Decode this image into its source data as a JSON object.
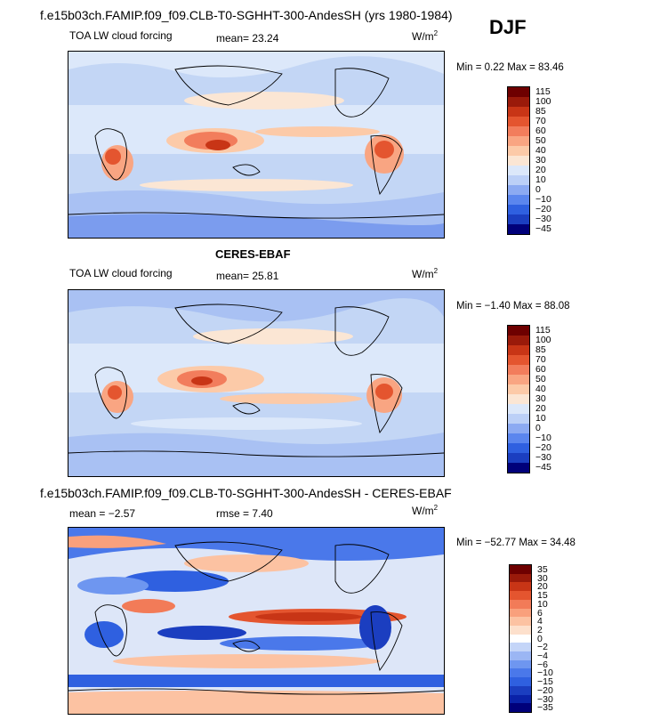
{
  "header": {
    "title": "f.e15b03ch.FAMIP.f09_f09.CLB-T0-SGHHT-300-AndesSH (yrs 1980-1984)",
    "season": "DJF"
  },
  "panels": [
    {
      "id": "model",
      "title": "",
      "left_label": "TOA LW cloud forcing",
      "stat1": "mean=  23.24",
      "stat2": "",
      "units": "W/m",
      "units_sup": "2",
      "minmax": "Min =   0.22 Max =  83.46",
      "colors": [
        "#00007a",
        "#1b3ec0",
        "#2f60e0",
        "#5b86ee",
        "#8caaf2",
        "#bcd0f7",
        "#dce8fa",
        "#fbe6d4",
        "#fccaa8",
        "#f9a582",
        "#f27d5c",
        "#e4552f",
        "#c83516",
        "#9a1a0a",
        "#6e0000"
      ],
      "levels": [
        "115",
        "100",
        "85",
        "70",
        "60",
        "50",
        "40",
        "30",
        "20",
        "10",
        "0",
        "−10",
        "−20",
        "−30",
        "−45"
      ]
    },
    {
      "id": "obs",
      "title": "CERES-EBAF",
      "left_label": "TOA LW cloud forcing",
      "stat1": "mean=  25.81",
      "stat2": "",
      "units": "W/m",
      "units_sup": "2",
      "minmax": "Min =  −1.40 Max =  88.08",
      "colors": [
        "#00007a",
        "#1b3ec0",
        "#2f60e0",
        "#5b86ee",
        "#8caaf2",
        "#bcd0f7",
        "#dce8fa",
        "#fbe6d4",
        "#fccaa8",
        "#f9a582",
        "#f27d5c",
        "#e4552f",
        "#c83516",
        "#9a1a0a",
        "#6e0000"
      ],
      "levels": [
        "115",
        "100",
        "85",
        "70",
        "60",
        "50",
        "40",
        "30",
        "20",
        "10",
        "0",
        "−10",
        "−20",
        "−30",
        "−45"
      ]
    },
    {
      "id": "diff",
      "title": "f.e15b03ch.FAMIP.f09_f09.CLB-T0-SGHHT-300-AndesSH - CERES-EBAF",
      "left_label": "mean =   −2.57",
      "stat1": "rmse =    7.40",
      "stat2": "",
      "units": "W/m",
      "units_sup": "2",
      "minmax": "Min = −52.77 Max =  34.48",
      "colors": [
        "#00007a",
        "#0a22a8",
        "#1b3ec0",
        "#2f60e0",
        "#4a78ea",
        "#6e96f0",
        "#9bb6f4",
        "#c4d5f8",
        "#ffffff",
        "#fde0cc",
        "#fcc2a2",
        "#f9a07c",
        "#f27b58",
        "#e4552f",
        "#c83516",
        "#9a1a0a",
        "#6e0000"
      ],
      "levels": [
        "35",
        "30",
        "20",
        "15",
        "10",
        "6",
        "4",
        "2",
        "0",
        "−2",
        "−4",
        "−6",
        "−10",
        "−15",
        "−20",
        "−30",
        "−35"
      ]
    }
  ],
  "chart_data": [
    {
      "type": "heatmap",
      "title": "TOA LW cloud forcing",
      "subtitle": "f.e15b03ch.FAMIP.f09_f09.CLB-T0-SGHHT-300-AndesSH (yrs 1980-1984), DJF",
      "units": "W/m2",
      "mean": 23.24,
      "min": 0.22,
      "max": 83.46,
      "contour_levels": [
        -45,
        -30,
        -20,
        -10,
        0,
        10,
        20,
        30,
        40,
        50,
        60,
        70,
        85,
        100,
        115
      ]
    },
    {
      "type": "heatmap",
      "title": "CERES-EBAF",
      "subtitle": "TOA LW cloud forcing",
      "units": "W/m2",
      "mean": 25.81,
      "min": -1.4,
      "max": 88.08,
      "contour_levels": [
        -45,
        -30,
        -20,
        -10,
        0,
        10,
        20,
        30,
        40,
        50,
        60,
        70,
        85,
        100,
        115
      ]
    },
    {
      "type": "heatmap",
      "title": "f.e15b03ch.FAMIP.f09_f09.CLB-T0-SGHHT-300-AndesSH - CERES-EBAF",
      "units": "W/m2",
      "mean": -2.57,
      "rmse": 7.4,
      "min": -52.77,
      "max": 34.48,
      "contour_levels": [
        -35,
        -30,
        -20,
        -15,
        -10,
        -6,
        -4,
        -2,
        0,
        2,
        4,
        6,
        10,
        15,
        20,
        30,
        35
      ]
    }
  ]
}
